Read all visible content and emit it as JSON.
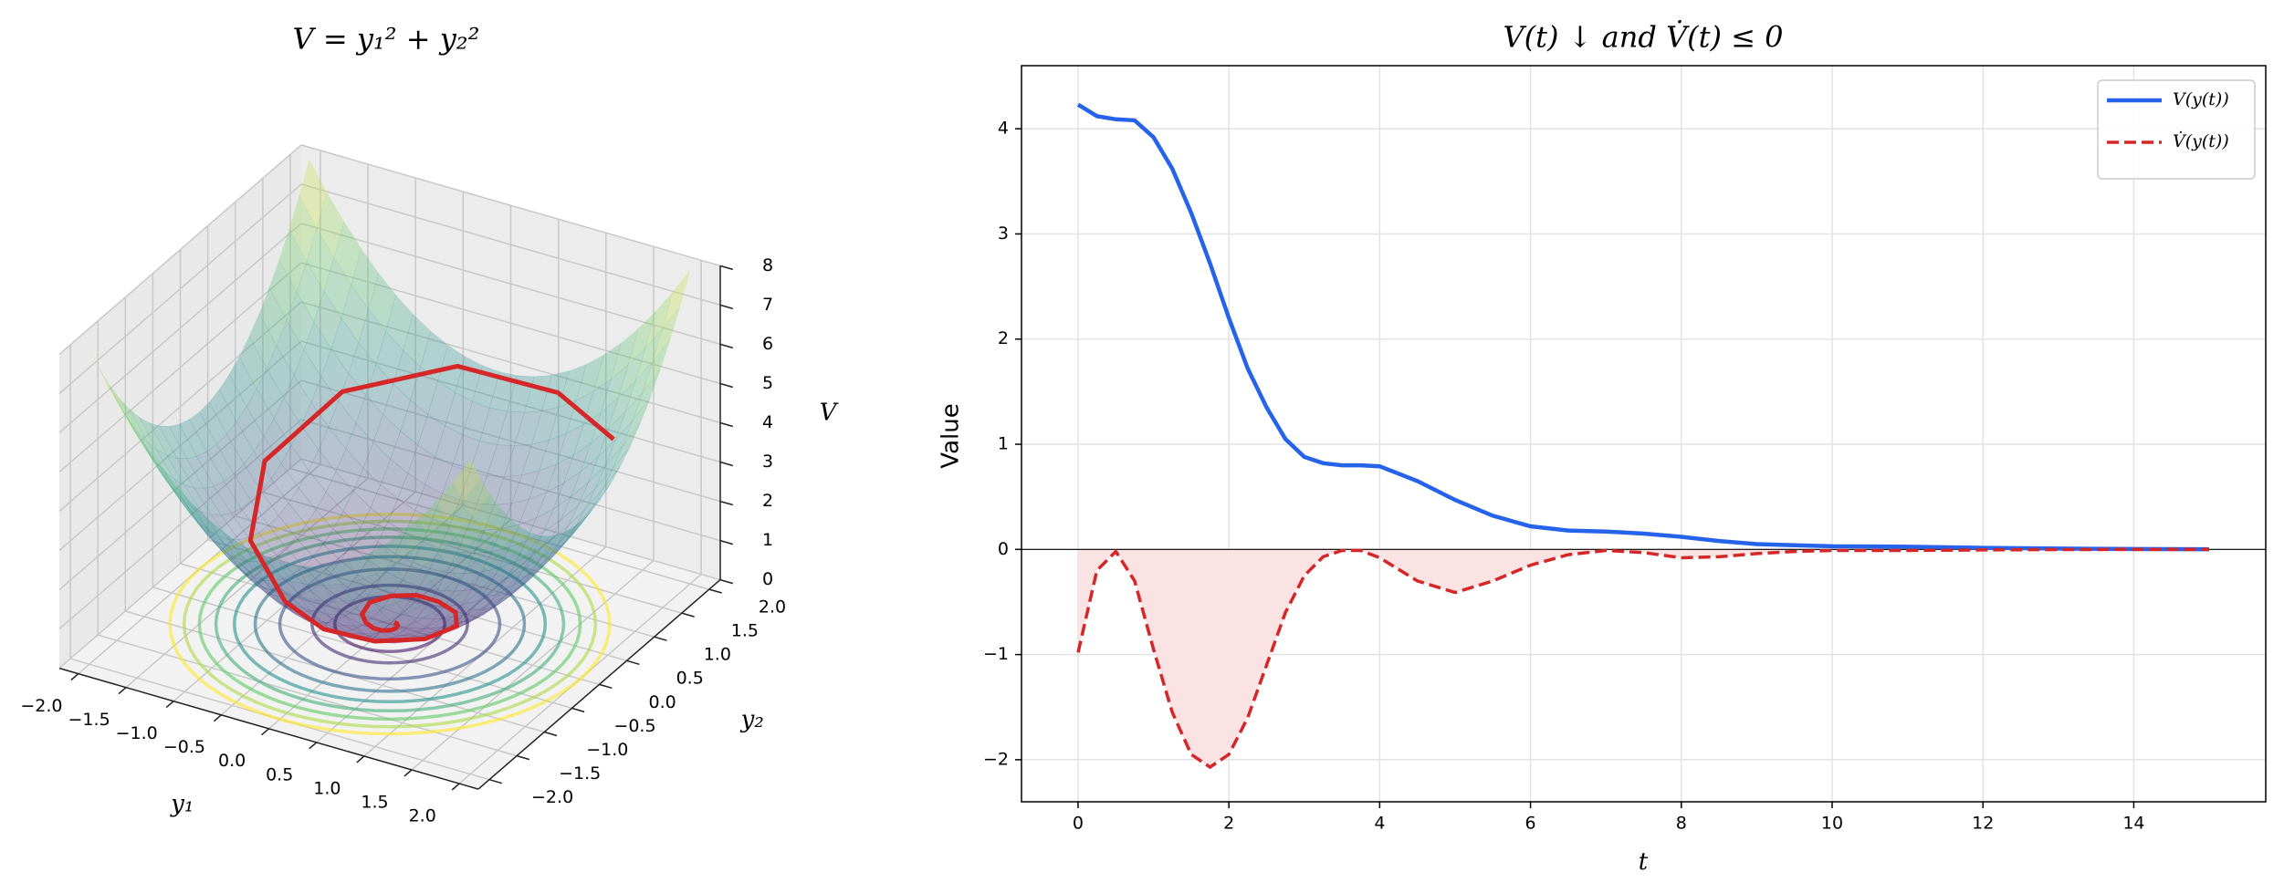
{
  "chart_data": [
    {
      "type": "surface3d",
      "title": "V = y₁² + y₂²",
      "xlabel": "y₁",
      "ylabel": "y₂",
      "zlabel": "V",
      "xlim": [
        -2.2,
        2.2
      ],
      "ylim": [
        -2.2,
        2.2
      ],
      "zlim": [
        0,
        8
      ],
      "xticks": [
        {
          "value": -2,
          "label": "−2.0"
        },
        {
          "value": -1.5,
          "label": "−1.5"
        },
        {
          "value": -1,
          "label": "−1.0"
        },
        {
          "value": -0.5,
          "label": "−0.5"
        },
        {
          "value": 0,
          "label": "0.0"
        },
        {
          "value": 0.5,
          "label": "0.5"
        },
        {
          "value": 1,
          "label": "1.0"
        },
        {
          "value": 1.5,
          "label": "1.5"
        },
        {
          "value": 2,
          "label": "2.0"
        }
      ],
      "yticks": [
        {
          "value": -2,
          "label": "−2.0"
        },
        {
          "value": -1.5,
          "label": "−1.5"
        },
        {
          "value": -1,
          "label": "−1.0"
        },
        {
          "value": -0.5,
          "label": "−0.5"
        },
        {
          "value": 0,
          "label": "0.0"
        },
        {
          "value": 0.5,
          "label": "0.5"
        },
        {
          "value": 1,
          "label": "1.0"
        },
        {
          "value": 1.5,
          "label": "1.5"
        },
        {
          "value": 2,
          "label": "2.0"
        }
      ],
      "zticks": [
        0,
        1,
        2,
        3,
        4,
        5,
        6,
        7,
        8
      ],
      "surface_range": [
        -2,
        2
      ],
      "colormap": "viridis",
      "surface_alpha": 0.3,
      "contour_levels": [
        0.25,
        0.5,
        1,
        1.5,
        2,
        2.5,
        3,
        3.5,
        4
      ],
      "trajectory": {
        "color": "#d62728",
        "x": [
          1.6,
          0.67,
          -0.41,
          -1.27,
          -1.55,
          -1.25,
          -0.67,
          -0.17,
          0.32,
          0.67,
          0.75,
          0.54,
          0.27,
          0.02,
          -0.19,
          -0.31,
          -0.28,
          -0.18,
          -0.08,
          0.01,
          0.07,
          0.09,
          0.08,
          0.05,
          0.02
        ],
        "y": [
          1.3,
          1.9,
          1.94,
          1.34,
          0.41,
          -0.37,
          -0.74,
          -0.91,
          -0.83,
          -0.52,
          -0.08,
          0.26,
          0.42,
          0.45,
          0.35,
          0.17,
          -0.02,
          -0.12,
          -0.16,
          -0.15,
          -0.1,
          -0.04,
          0.01,
          0.04,
          0.05
        ]
      }
    },
    {
      "type": "line",
      "title": "V(t) ↓  and V̇(t) ≤ 0",
      "xlabel": "t",
      "ylabel": "Value",
      "x": [
        0,
        0.25,
        0.5,
        0.75,
        1,
        1.25,
        1.5,
        1.75,
        2,
        2.25,
        2.5,
        2.75,
        3,
        3.25,
        3.5,
        3.75,
        4,
        4.5,
        5,
        5.5,
        6,
        6.5,
        7,
        7.5,
        8,
        8.5,
        9,
        9.5,
        10,
        11,
        12,
        13,
        14,
        15
      ],
      "series": [
        {
          "name": "V(y(t))",
          "color": "#2563eb",
          "dash": false,
          "values": [
            4.23,
            4.12,
            4.09,
            4.08,
            3.92,
            3.62,
            3.2,
            2.72,
            2.2,
            1.72,
            1.35,
            1.05,
            0.88,
            0.82,
            0.8,
            0.8,
            0.79,
            0.65,
            0.47,
            0.32,
            0.22,
            0.18,
            0.17,
            0.15,
            0.12,
            0.08,
            0.05,
            0.04,
            0.03,
            0.025,
            0.015,
            0.008,
            0.004,
            0.002
          ]
        },
        {
          "name": "V̇(y(t))",
          "color": "#d62728",
          "dash": true,
          "fill_color": "#fbe2e3",
          "values": [
            -0.98,
            -0.2,
            -0.02,
            -0.3,
            -0.95,
            -1.55,
            -1.95,
            -2.07,
            -1.95,
            -1.6,
            -1.1,
            -0.6,
            -0.25,
            -0.07,
            -0.01,
            -0.01,
            -0.08,
            -0.3,
            -0.41,
            -0.3,
            -0.15,
            -0.05,
            -0.01,
            -0.03,
            -0.08,
            -0.07,
            -0.04,
            -0.02,
            -0.01,
            -0.01,
            -0.005,
            -0.002,
            -0.001,
            -0.001
          ]
        }
      ],
      "hline": 0,
      "xlim": [
        -0.75,
        15.75
      ],
      "ylim": [
        -2.4,
        4.6
      ],
      "xticks": [
        0,
        2,
        4,
        6,
        8,
        10,
        12,
        14
      ],
      "yticks": [
        {
          "value": -2,
          "label": "−2"
        },
        {
          "value": -1,
          "label": "−1"
        },
        0,
        1,
        2,
        3,
        4
      ],
      "grid": true,
      "legend": "upper right"
    }
  ]
}
